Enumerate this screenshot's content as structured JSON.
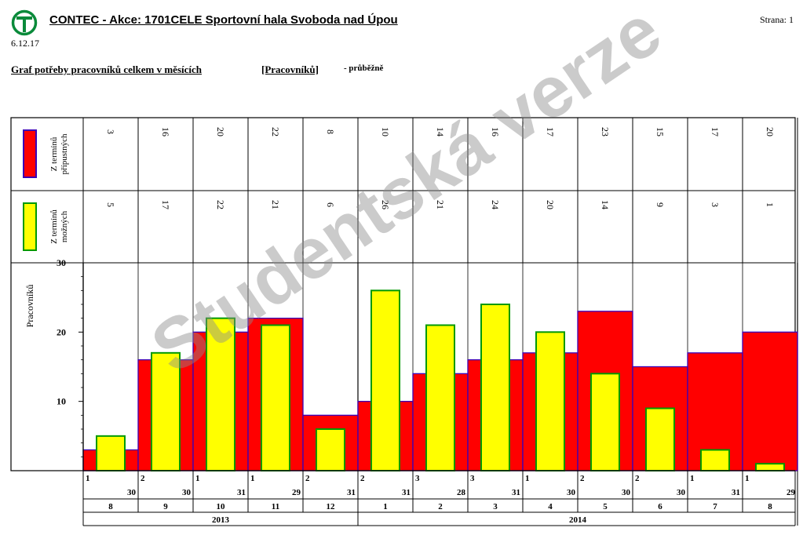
{
  "header": {
    "title": "CONTEC - Akce: 1701CELE Sportovní hala Svoboda nad Úpou",
    "page": "Strana: 1",
    "date": "6.12.17"
  },
  "chart_title": "Graf potřeby pracovníků celkem v měsících",
  "chart_unit": "[Pracovníků]",
  "chart_mode": "- průběžně",
  "watermark": "Studentská verze",
  "colors": {
    "red": "#ff0000",
    "yellow": "#ffff00",
    "red_border": "#3a00b8",
    "yellow_border": "#009900"
  },
  "chart_data": {
    "type": "bar",
    "ylabel": "Pracovníků",
    "ylim": [
      0,
      30
    ],
    "yticks": [
      10,
      20,
      30
    ],
    "months": [
      "8",
      "9",
      "10",
      "11",
      "12",
      "1",
      "2",
      "3",
      "4",
      "5",
      "6",
      "7",
      "8"
    ],
    "day_range_start": [
      "1",
      "2",
      "1",
      "1",
      "2",
      "2",
      "3",
      "3",
      "1",
      "2",
      "2",
      "1",
      "1"
    ],
    "day_range_end": [
      "30",
      "30",
      "31",
      "29",
      "31",
      "31",
      "28",
      "31",
      "30",
      "30",
      "30",
      "31",
      "29"
    ],
    "years": [
      {
        "label": "2013",
        "span": 5
      },
      {
        "label": "2014",
        "span": 8
      }
    ],
    "series": [
      {
        "name": "Z termínů přípustných",
        "color": "#ff0000",
        "values": [
          3,
          16,
          20,
          22,
          8,
          10,
          14,
          16,
          17,
          23,
          15,
          17,
          20
        ]
      },
      {
        "name": "Z termínů možných",
        "color": "#ffff00",
        "values": [
          5,
          17,
          22,
          21,
          6,
          26,
          21,
          24,
          20,
          14,
          9,
          3,
          1
        ]
      }
    ]
  }
}
